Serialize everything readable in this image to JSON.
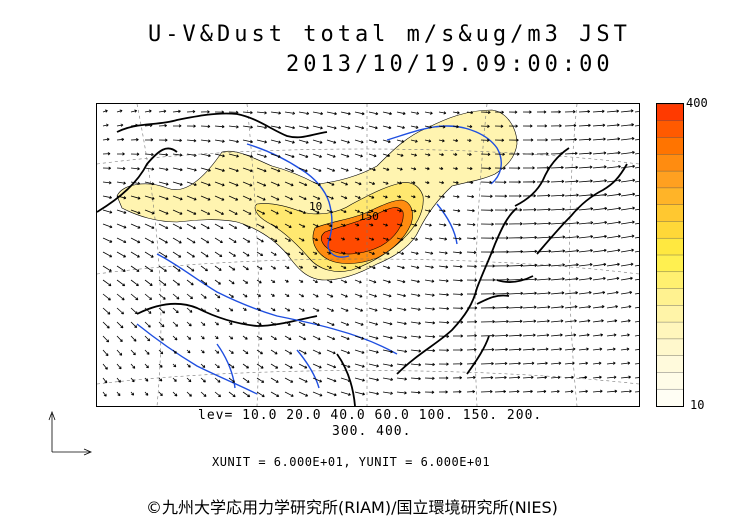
{
  "header": {
    "title_line1": "U-V&Dust total m/s&ug/m3 JST",
    "title_line2": "2013/10/19.09:00:00"
  },
  "colorbar": {
    "max_label": "400",
    "min_label": "10",
    "colors": [
      "#ff3a00",
      "#ff5a00",
      "#ff7400",
      "#ff8c10",
      "#ffa020",
      "#ffb428",
      "#ffc830",
      "#ffd838",
      "#ffe840",
      "#fff050",
      "#fff070",
      "#fff290",
      "#fff4a8",
      "#fff6bc",
      "#fff8cc",
      "#fffadc",
      "#fffce8",
      "#fffef4"
    ]
  },
  "levels": {
    "line1": "lev= 10.0 20.0 40.0 60.0 100. 150. 200.",
    "line2": "300. 400."
  },
  "units": {
    "text": "XUNIT = 6.000E+01, YUNIT = 6.000E+01"
  },
  "map": {
    "content": "East Asia coastlines, rivers and wind vectors with dust concentration shading",
    "contour_labels": [
      "10",
      "150"
    ]
  },
  "footer": {
    "copyright": "©九州大学応用力学研究所(RIAM)/国立環境研究所(NIES)"
  }
}
